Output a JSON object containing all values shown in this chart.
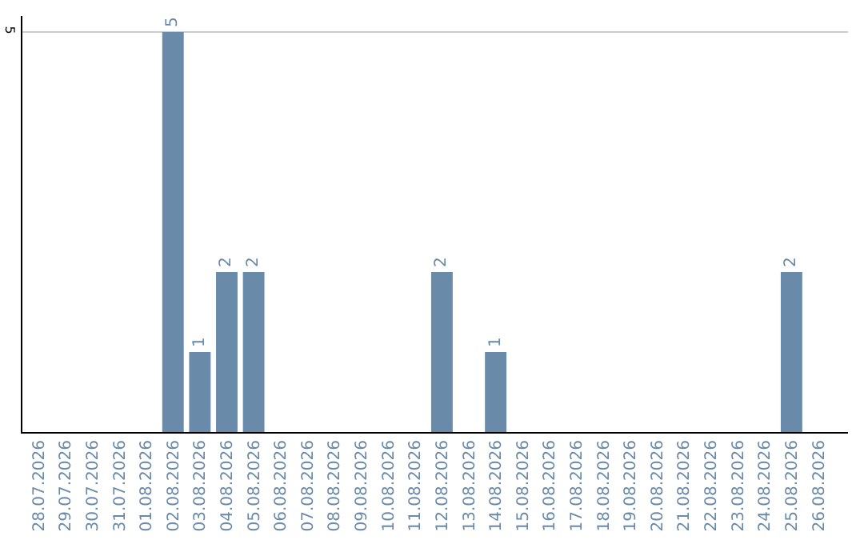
{
  "chart_data": {
    "type": "bar",
    "categories": [
      "28.07.2026",
      "29.07.2026",
      "30.07.2026",
      "31.07.2026",
      "01.08.2026",
      "02.08.2026",
      "03.08.2026",
      "04.08.2026",
      "05.08.2026",
      "06.08.2026",
      "07.08.2026",
      "08.08.2026",
      "09.08.2026",
      "10.08.2026",
      "11.08.2026",
      "12.08.2026",
      "13.08.2026",
      "14.08.2026",
      "15.08.2026",
      "16.08.2026",
      "17.08.2026",
      "18.08.2026",
      "19.08.2026",
      "20.08.2026",
      "21.08.2026",
      "22.08.2026",
      "23.08.2026",
      "24.08.2026",
      "25.08.2026",
      "26.08.2026"
    ],
    "values": [
      null,
      null,
      null,
      null,
      null,
      5,
      1,
      2,
      2,
      null,
      null,
      null,
      null,
      null,
      null,
      2,
      null,
      1,
      null,
      null,
      null,
      null,
      null,
      null,
      null,
      null,
      null,
      null,
      2,
      null
    ],
    "color": "#6a8aaa",
    "ylim": [
      0,
      5.2
    ],
    "yticks": [
      5
    ],
    "grid": "y",
    "data_labels": true,
    "legend": false
  }
}
